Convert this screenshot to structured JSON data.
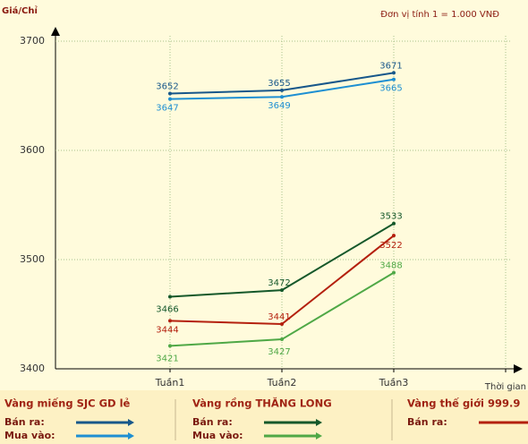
{
  "chart_data": {
    "type": "line",
    "y_label": "Giá/Chỉ",
    "unit_note": "Đơn vị tính 1 = 1.000 VNĐ",
    "x_label": "Thời gian",
    "categories": [
      "Tuần1",
      "Tuần2",
      "Tuần3",
      null
    ],
    "ylim": [
      3400,
      3700
    ],
    "yticks": [
      3400,
      3500,
      3600,
      3700
    ],
    "grid": true,
    "groups": [
      {
        "title": "Vàng miếng SJC GD lẻ",
        "series": [
          {
            "name": "Bán ra:",
            "color": "#17578a",
            "values": [
              3652,
              3655,
              3671,
              null
            ]
          },
          {
            "name": "Mua vào:",
            "color": "#1d8fd2",
            "values": [
              3647,
              3649,
              3665,
              null
            ]
          }
        ]
      },
      {
        "title": "Vàng rồng THĂNG LONG",
        "series": [
          {
            "name": "Bán ra:",
            "color": "#15582a",
            "values": [
              3466,
              3472,
              3533,
              null
            ]
          },
          {
            "name": "Mua vào:",
            "color": "#4fa846",
            "values": [
              3421,
              3427,
              3488,
              null
            ]
          }
        ]
      },
      {
        "title": "Vàng thế giới 999.9",
        "series": [
          {
            "name": "Bán ra:",
            "color": "#b4200e",
            "values": [
              3444,
              3441,
              3522,
              null
            ]
          }
        ]
      }
    ]
  }
}
